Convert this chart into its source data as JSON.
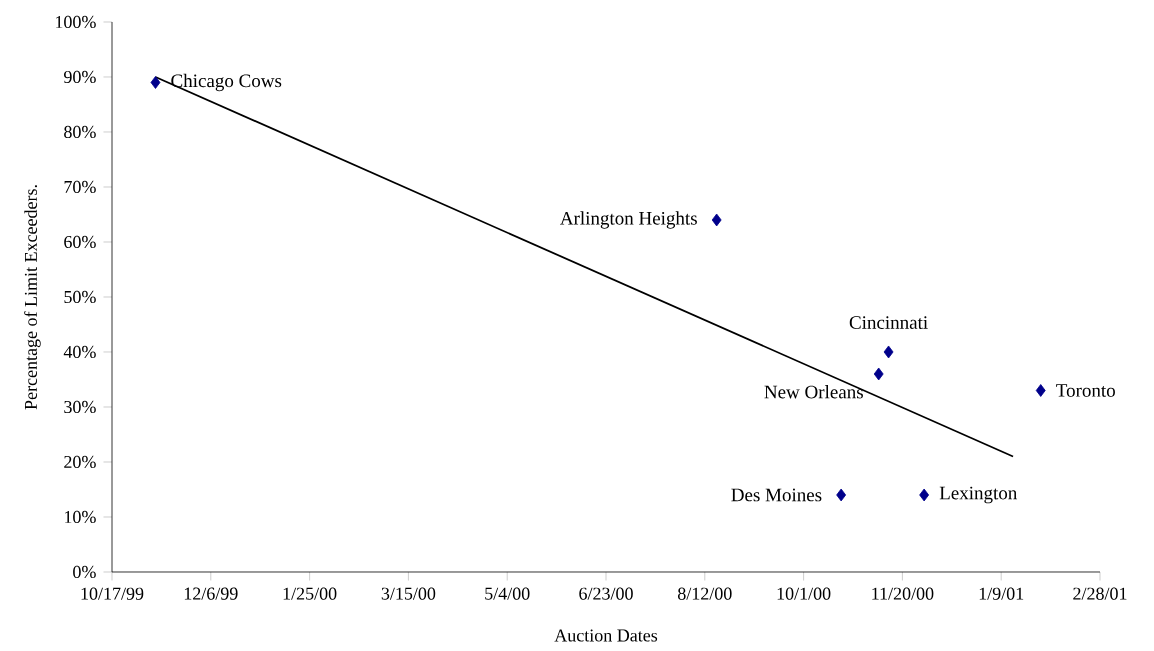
{
  "chart_data": {
    "type": "scatter",
    "xlabel": "Auction Dates",
    "ylabel": "Percentage of Limit Exceeders.",
    "xlim": [
      "1999-10-17",
      "2001-02-28"
    ],
    "xticks": [
      {
        "value": "1999-10-17",
        "label": "10/17/99"
      },
      {
        "value": "1999-12-06",
        "label": "12/6/99"
      },
      {
        "value": "2000-01-25",
        "label": "1/25/00"
      },
      {
        "value": "2000-03-15",
        "label": "3/15/00"
      },
      {
        "value": "2000-05-04",
        "label": "5/4/00"
      },
      {
        "value": "2000-06-23",
        "label": "6/23/00"
      },
      {
        "value": "2000-08-12",
        "label": "8/12/00"
      },
      {
        "value": "2000-10-01",
        "label": "10/1/00"
      },
      {
        "value": "2000-11-20",
        "label": "11/20/00"
      },
      {
        "value": "2001-01-09",
        "label": "1/9/01"
      },
      {
        "value": "2001-02-28",
        "label": "2/28/01"
      }
    ],
    "ylim": [
      0,
      100
    ],
    "yticks": [
      {
        "value": 0,
        "label": "0%"
      },
      {
        "value": 10,
        "label": "10%"
      },
      {
        "value": 20,
        "label": "20%"
      },
      {
        "value": 30,
        "label": "30%"
      },
      {
        "value": 40,
        "label": "40%"
      },
      {
        "value": 50,
        "label": "50%"
      },
      {
        "value": 60,
        "label": "60%"
      },
      {
        "value": 70,
        "label": "70%"
      },
      {
        "value": 80,
        "label": "80%"
      },
      {
        "value": 90,
        "label": "90%"
      },
      {
        "value": 100,
        "label": "100%"
      }
    ],
    "grid": false,
    "series": [
      {
        "color": "#00008b",
        "marker": "diamond",
        "x": [
          "1999-11-08",
          "2000-08-18",
          "2000-10-20",
          "2000-11-08",
          "2000-11-13",
          "2000-12-01",
          "2001-01-29"
        ],
        "values": [
          89,
          64,
          14,
          36,
          40,
          14,
          33
        ]
      },
      {
        "type": "line",
        "color": "#000000",
        "marker": "none",
        "line_style": "solid",
        "x": [
          "1999-11-08",
          "2001-01-15"
        ],
        "values": [
          90,
          21
        ]
      }
    ],
    "annotations": [
      {
        "text": "Chicago Cows",
        "x": "1999-11-08",
        "y": 89
      },
      {
        "text": "Arlington Heights",
        "x": "2000-08-18",
        "y": 64
      },
      {
        "text": "Des Moines",
        "x": "2000-10-20",
        "y": 14
      },
      {
        "text": "New Orleans",
        "x": "2000-11-08",
        "y": 36
      },
      {
        "text": "Cincinnati",
        "x": "2000-11-13",
        "y": 40
      },
      {
        "text": "Lexington",
        "x": "2000-12-01",
        "y": 14
      },
      {
        "text": "Toronto",
        "x": "2001-01-29",
        "y": 33
      }
    ]
  }
}
